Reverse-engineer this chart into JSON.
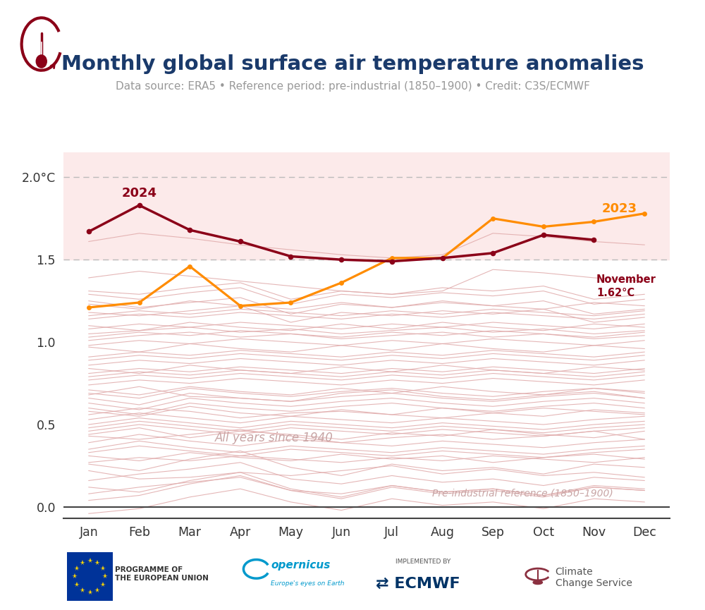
{
  "title": "Monthly global surface air temperature anomalies",
  "subtitle": "Data source: ERA5 • Reference period: pre-industrial (1850–1900) • Credit: C3S/ECMWF",
  "months": [
    "Jan",
    "Feb",
    "Mar",
    "Apr",
    "May",
    "Jun",
    "Jul",
    "Aug",
    "Sep",
    "Oct",
    "Nov",
    "Dec"
  ],
  "year_2024": [
    1.67,
    1.83,
    1.68,
    1.61,
    1.52,
    1.5,
    1.49,
    1.51,
    1.54,
    1.65,
    1.62,
    null
  ],
  "year_2023": [
    1.21,
    1.24,
    1.46,
    1.22,
    1.24,
    1.36,
    1.51,
    1.51,
    1.75,
    1.7,
    1.73,
    1.78
  ],
  "color_2024": "#8B0018",
  "color_2023": "#FF8C00",
  "bg_shade_color": "#FCEAEA",
  "other_years_color": "#E0AAAA",
  "ylim": [
    -0.07,
    2.15
  ],
  "yticks": [
    0.0,
    0.5,
    1.0,
    1.5,
    2.0
  ],
  "ytick_labels": [
    "0.0",
    "0.5",
    "1.0",
    "1.5",
    "2.0°C"
  ],
  "dashed_lines": [
    1.5,
    2.0
  ],
  "title_color": "#1a3a6b",
  "subtitle_color": "#999999",
  "other_years_data": [
    [
      0.22,
      0.17,
      0.18,
      0.21,
      0.19,
      0.22,
      0.25,
      0.2,
      0.23,
      0.19,
      0.21,
      0.18
    ],
    [
      0.08,
      0.12,
      0.15,
      0.18,
      0.1,
      0.08,
      0.13,
      0.09,
      0.11,
      0.07,
      0.12,
      0.1
    ],
    [
      0.31,
      0.28,
      0.33,
      0.3,
      0.28,
      0.32,
      0.29,
      0.31,
      0.27,
      0.3,
      0.32,
      0.29
    ],
    [
      0.44,
      0.48,
      0.42,
      0.46,
      0.44,
      0.41,
      0.45,
      0.43,
      0.47,
      0.44,
      0.42,
      0.46
    ],
    [
      0.58,
      0.55,
      0.61,
      0.57,
      0.55,
      0.59,
      0.56,
      0.6,
      0.57,
      0.55,
      0.59,
      0.57
    ],
    [
      0.71,
      0.68,
      0.73,
      0.7,
      0.68,
      0.72,
      0.69,
      0.73,
      0.7,
      0.68,
      0.72,
      0.7
    ],
    [
      0.84,
      0.81,
      0.86,
      0.83,
      0.81,
      0.85,
      0.82,
      0.86,
      0.83,
      0.81,
      0.85,
      0.83
    ],
    [
      0.97,
      0.94,
      0.99,
      0.96,
      0.94,
      0.98,
      0.95,
      0.99,
      0.96,
      0.94,
      0.98,
      0.96
    ],
    [
      1.1,
      1.07,
      1.12,
      1.09,
      1.07,
      1.11,
      1.08,
      1.12,
      1.09,
      1.07,
      1.11,
      1.09
    ],
    [
      1.23,
      1.2,
      1.25,
      1.22,
      1.2,
      1.24,
      1.21,
      1.25,
      1.22,
      1.2,
      1.24,
      1.22
    ],
    [
      0.16,
      0.2,
      0.23,
      0.27,
      0.17,
      0.14,
      0.19,
      0.15,
      0.17,
      0.13,
      0.18,
      0.16
    ],
    [
      0.35,
      0.4,
      0.36,
      0.33,
      0.37,
      0.35,
      0.33,
      0.36,
      0.34,
      0.32,
      0.35,
      0.37
    ],
    [
      0.5,
      0.54,
      0.51,
      0.48,
      0.52,
      0.5,
      0.48,
      0.51,
      0.49,
      0.47,
      0.5,
      0.52
    ],
    [
      0.63,
      0.59,
      0.66,
      0.63,
      0.61,
      0.64,
      0.66,
      0.63,
      0.61,
      0.64,
      0.66,
      0.63
    ],
    [
      0.77,
      0.8,
      0.78,
      0.81,
      0.79,
      0.77,
      0.8,
      0.78,
      0.81,
      0.79,
      0.77,
      0.8
    ],
    [
      0.89,
      0.92,
      0.9,
      0.93,
      0.91,
      0.89,
      0.92,
      0.9,
      0.93,
      0.91,
      0.89,
      0.92
    ],
    [
      1.01,
      1.04,
      1.06,
      1.03,
      1.05,
      1.02,
      1.04,
      1.06,
      1.03,
      1.05,
      1.02,
      1.04
    ],
    [
      1.14,
      1.17,
      1.15,
      1.18,
      1.16,
      1.14,
      1.17,
      1.15,
      1.18,
      1.16,
      1.14,
      1.17
    ],
    [
      0.26,
      0.22,
      0.29,
      0.34,
      0.24,
      0.19,
      0.26,
      0.22,
      0.24,
      0.2,
      0.26,
      0.24
    ],
    [
      0.39,
      0.44,
      0.4,
      0.37,
      0.41,
      0.39,
      0.37,
      0.4,
      0.38,
      0.36,
      0.39,
      0.41
    ],
    [
      0.53,
      0.57,
      0.54,
      0.51,
      0.55,
      0.53,
      0.51,
      0.54,
      0.52,
      0.5,
      0.53,
      0.55
    ],
    [
      0.66,
      0.62,
      0.69,
      0.66,
      0.64,
      0.67,
      0.69,
      0.66,
      0.64,
      0.67,
      0.69,
      0.66
    ],
    [
      0.79,
      0.82,
      0.8,
      0.83,
      0.81,
      0.79,
      0.82,
      0.8,
      0.83,
      0.81,
      0.79,
      0.82
    ],
    [
      0.91,
      0.94,
      0.92,
      0.95,
      0.93,
      0.91,
      0.94,
      0.92,
      0.95,
      0.93,
      0.91,
      0.94
    ],
    [
      1.03,
      1.06,
      1.04,
      1.07,
      1.05,
      1.03,
      1.06,
      1.04,
      1.07,
      1.05,
      1.03,
      1.06
    ],
    [
      1.16,
      1.19,
      1.17,
      1.2,
      1.18,
      1.16,
      1.19,
      1.17,
      1.2,
      1.18,
      1.16,
      1.19
    ],
    [
      1.31,
      1.29,
      1.33,
      1.36,
      1.26,
      1.31,
      1.29,
      1.33,
      1.31,
      1.34,
      1.26,
      1.29
    ],
    [
      0.68,
      0.73,
      0.67,
      0.66,
      0.64,
      0.69,
      0.71,
      0.67,
      0.65,
      0.68,
      0.7,
      0.66
    ],
    [
      0.81,
      0.84,
      0.82,
      0.85,
      0.83,
      0.81,
      0.84,
      0.82,
      0.85,
      0.83,
      0.81,
      0.84
    ],
    [
      1.18,
      1.16,
      1.19,
      1.22,
      1.12,
      1.18,
      1.16,
      1.19,
      1.17,
      1.2,
      1.12,
      1.15
    ],
    [
      0.12,
      0.09,
      0.16,
      0.21,
      0.11,
      0.06,
      0.13,
      0.09,
      0.11,
      0.07,
      0.13,
      0.11
    ],
    [
      0.46,
      0.5,
      0.47,
      0.44,
      0.48,
      0.46,
      0.44,
      0.47,
      0.45,
      0.43,
      0.46,
      0.48
    ],
    [
      0.6,
      0.56,
      0.63,
      0.6,
      0.58,
      0.61,
      0.63,
      0.6,
      0.58,
      0.61,
      0.63,
      0.6
    ],
    [
      0.74,
      0.77,
      0.75,
      0.78,
      0.76,
      0.74,
      0.77,
      0.75,
      0.78,
      0.76,
      0.74,
      0.77
    ],
    [
      0.86,
      0.89,
      0.87,
      0.9,
      0.88,
      0.86,
      0.89,
      0.87,
      0.9,
      0.88,
      0.86,
      0.89
    ],
    [
      0.98,
      1.01,
      0.99,
      1.02,
      1.0,
      0.98,
      1.01,
      0.99,
      1.02,
      1.0,
      0.98,
      1.01
    ],
    [
      1.25,
      1.21,
      1.24,
      1.27,
      1.17,
      1.23,
      1.21,
      1.24,
      1.22,
      1.25,
      1.17,
      1.2
    ],
    [
      0.04,
      0.07,
      0.14,
      0.19,
      0.1,
      0.05,
      0.12,
      0.08,
      0.1,
      0.06,
      0.12,
      0.1
    ],
    [
      1.61,
      1.66,
      1.63,
      1.59,
      1.56,
      1.53,
      1.51,
      1.53,
      1.66,
      1.64,
      1.61,
      1.59
    ],
    [
      -0.04,
      -0.01,
      0.06,
      0.11,
      0.03,
      -0.02,
      0.05,
      0.01,
      0.03,
      -0.01,
      0.05,
      0.03
    ],
    [
      1.39,
      1.43,
      1.4,
      1.37,
      1.34,
      1.31,
      1.29,
      1.31,
      1.44,
      1.42,
      1.39,
      1.37
    ],
    [
      0.56,
      0.6,
      0.58,
      0.54,
      0.57,
      0.58,
      0.56,
      0.54,
      0.57,
      0.6,
      0.58,
      0.56
    ],
    [
      0.43,
      0.41,
      0.44,
      0.47,
      0.43,
      0.39,
      0.42,
      0.44,
      0.41,
      0.43,
      0.46,
      0.41
    ],
    [
      0.27,
      0.3,
      0.28,
      0.31,
      0.29,
      0.27,
      0.3,
      0.28,
      0.31,
      0.29,
      0.27,
      0.3
    ],
    [
      1.08,
      1.11,
      1.09,
      1.12,
      1.1,
      1.08,
      1.11,
      1.09,
      1.12,
      1.1,
      1.08,
      1.11
    ],
    [
      0.69,
      0.66,
      0.72,
      0.69,
      0.67,
      0.7,
      0.72,
      0.69,
      0.67,
      0.7,
      0.72,
      0.69
    ],
    [
      1.29,
      1.26,
      1.3,
      1.33,
      1.23,
      1.29,
      1.27,
      1.3,
      1.28,
      1.31,
      1.23,
      1.26
    ],
    [
      0.33,
      0.37,
      0.34,
      0.31,
      0.35,
      0.33,
      0.31,
      0.34,
      0.32,
      0.3,
      0.33,
      0.35
    ],
    [
      0.48,
      0.52,
      0.49,
      0.46,
      0.5,
      0.48,
      0.46,
      0.49,
      0.47,
      0.45,
      0.48,
      0.5
    ],
    [
      1.05,
      1.07,
      1.09,
      1.06,
      1.08,
      1.05,
      1.07,
      1.09,
      1.06,
      1.08,
      1.05,
      1.07
    ]
  ]
}
